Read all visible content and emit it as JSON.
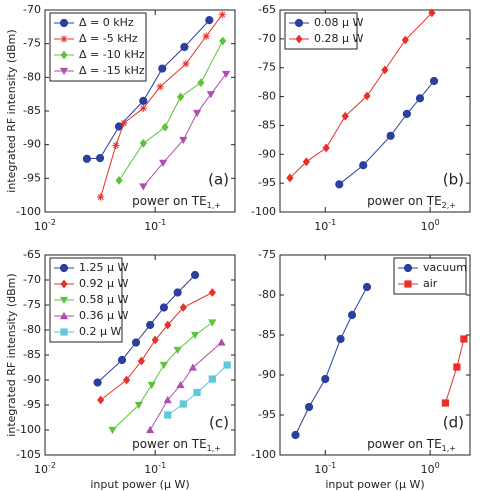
{
  "chart_data": [
    {
      "type": "line",
      "xscale": "log",
      "panel_label": "(a)",
      "annotation": {
        "text": "power on TE",
        "sub": "1,+"
      },
      "y_label": "integrated RF intensity (dBm)",
      "xlim": [
        0.01,
        0.53
      ],
      "ylim": [
        -100,
        -70
      ],
      "xticks": [
        {
          "value": 0.01,
          "label": "10",
          "exp": "-2"
        },
        {
          "value": 0.1,
          "label": "10",
          "exp": "-1"
        }
      ],
      "yticks": [
        -100,
        -95,
        -90,
        -85,
        -80,
        -75,
        -70
      ],
      "legend": "upper left",
      "series": [
        {
          "name": "Δ = 0 kHz",
          "color": "#2b3f9e",
          "marker": "circle",
          "x": [
            0.024,
            0.0316,
            0.047,
            0.078,
            0.116,
            0.184,
            0.31
          ],
          "values": [
            -92.1,
            -92,
            -87.3,
            -83.5,
            -78.7,
            -75.5,
            -71.5
          ]
        },
        {
          "name": "Δ = -5 kHz",
          "color": "#e8302a",
          "marker": "star",
          "x": [
            0.032,
            0.044,
            0.052,
            0.078,
            0.111,
            0.19,
            0.29,
            0.406
          ],
          "values": [
            -97.8,
            -90.1,
            -86.8,
            -84.6,
            -81.4,
            -78,
            -73.9,
            -70.7
          ]
        },
        {
          "name": "Δ = -10 kHz",
          "color": "#5cc43c",
          "marker": "diamond",
          "x": [
            0.047,
            0.078,
            0.123,
            0.17,
            0.26,
            0.41
          ],
          "values": [
            -95.3,
            -89.8,
            -87.4,
            -82.9,
            -80.8,
            -74.6
          ]
        },
        {
          "name": "Δ = -15 kHz",
          "color": "#b04fb0",
          "marker": "triangle-down",
          "x": [
            0.078,
            0.118,
            0.18,
            0.24,
            0.32,
            0.44
          ],
          "values": [
            -96.2,
            -92.7,
            -89.3,
            -85.3,
            -82.5,
            -79.5
          ]
        }
      ]
    },
    {
      "type": "line",
      "xscale": "log",
      "panel_label": "(b)",
      "annotation": {
        "text": "power on TE",
        "sub": "2,+"
      },
      "xlim": [
        0.037,
        2.4
      ],
      "ylim": [
        -100,
        -65
      ],
      "xticks": [
        {
          "value": 0.1,
          "label": "10",
          "exp": "-1"
        },
        {
          "value": 1,
          "label": "10",
          "exp": "0"
        }
      ],
      "yticks": [
        -100,
        -95,
        -90,
        -85,
        -80,
        -75,
        -70,
        -65
      ],
      "legend": "upper left",
      "series": [
        {
          "name": "0.08 µ W",
          "color": "#2b3f9e",
          "marker": "circle",
          "x": [
            0.136,
            0.23,
            0.42,
            0.6,
            0.8,
            1.09
          ],
          "values": [
            -95.2,
            -91.9,
            -86.8,
            -83,
            -80.3,
            -77.3
          ]
        },
        {
          "name": "0.28 µ W",
          "color": "#e8302a",
          "marker": "diamond",
          "x": [
            0.046,
            0.066,
            0.102,
            0.155,
            0.25,
            0.37,
            0.58,
            1.04
          ],
          "values": [
            -94.1,
            -91.3,
            -88.9,
            -83.4,
            -79.9,
            -75.4,
            -70.2,
            -65.5
          ]
        }
      ]
    },
    {
      "type": "line",
      "xscale": "log",
      "panel_label": "(c)",
      "annotation": {
        "text": "power on TE",
        "sub": "1,+"
      },
      "y_label": "integrated RF intensity (dBm)",
      "x_label": "input power (µ W)",
      "xlim": [
        0.01,
        0.53
      ],
      "ylim": [
        -105,
        -65
      ],
      "xticks": [
        {
          "value": 0.01,
          "label": "10",
          "exp": "-2"
        },
        {
          "value": 0.1,
          "label": "10",
          "exp": "-1"
        }
      ],
      "yticks": [
        -105,
        -100,
        -95,
        -90,
        -85,
        -80,
        -75,
        -70,
        -65
      ],
      "legend": "upper left",
      "series": [
        {
          "name": "1.25 µ W",
          "color": "#2b3f9e",
          "marker": "circle",
          "x": [
            0.03,
            0.05,
            0.067,
            0.09,
            0.12,
            0.16,
            0.23
          ],
          "values": [
            -90.5,
            -86,
            -82.5,
            -79,
            -75.5,
            -72.5,
            -69
          ]
        },
        {
          "name": "0.92 µ W",
          "color": "#e8302a",
          "marker": "diamond",
          "x": [
            0.032,
            0.055,
            0.075,
            0.1,
            0.13,
            0.18,
            0.33
          ],
          "values": [
            -94,
            -90,
            -86.2,
            -82,
            -79,
            -75.5,
            -72.5
          ]
        },
        {
          "name": "0.58 µ W",
          "color": "#5cc43c",
          "marker": "triangle-down",
          "x": [
            0.041,
            0.071,
            0.093,
            0.12,
            0.16,
            0.23,
            0.33
          ],
          "values": [
            -100,
            -95,
            -91,
            -87,
            -84,
            -81,
            -78.5
          ]
        },
        {
          "name": "0.36 µ W",
          "color": "#b04fb0",
          "marker": "triangle-up",
          "x": [
            0.09,
            0.13,
            0.17,
            0.22,
            0.4
          ],
          "values": [
            -100,
            -94,
            -91,
            -87.5,
            -82.5
          ]
        },
        {
          "name": "0.2 µ W",
          "color": "#5cc8d8",
          "marker": "square",
          "x": [
            0.13,
            0.18,
            0.24,
            0.33,
            0.45
          ],
          "values": [
            -97,
            -94.8,
            -92.5,
            -89.8,
            -87
          ]
        }
      ]
    },
    {
      "type": "line",
      "xscale": "log",
      "panel_label": "(d)",
      "annotation": {
        "text": "power on TE",
        "sub": "1,+"
      },
      "x_label": "input power (µ W)",
      "xlim": [
        0.037,
        2.4
      ],
      "ylim": [
        -100,
        -75
      ],
      "xticks": [
        {
          "value": 0.1,
          "label": "10",
          "exp": "-1"
        },
        {
          "value": 1,
          "label": "10",
          "exp": "0"
        }
      ],
      "yticks": [
        -100,
        -95,
        -90,
        -85,
        -80,
        -75
      ],
      "legend": "upper right",
      "series": [
        {
          "name": "vacuum",
          "color": "#2b3f9e",
          "marker": "circle",
          "x": [
            0.052,
            0.07,
            0.1,
            0.14,
            0.18,
            0.25
          ],
          "values": [
            -97.5,
            -94,
            -90.5,
            -85.5,
            -82.5,
            -79
          ]
        },
        {
          "name": "air",
          "color": "#e8302a",
          "marker": "square",
          "x": [
            1.4,
            1.8,
            2.1
          ],
          "values": [
            -93.5,
            -89,
            -85.5
          ]
        }
      ]
    }
  ]
}
